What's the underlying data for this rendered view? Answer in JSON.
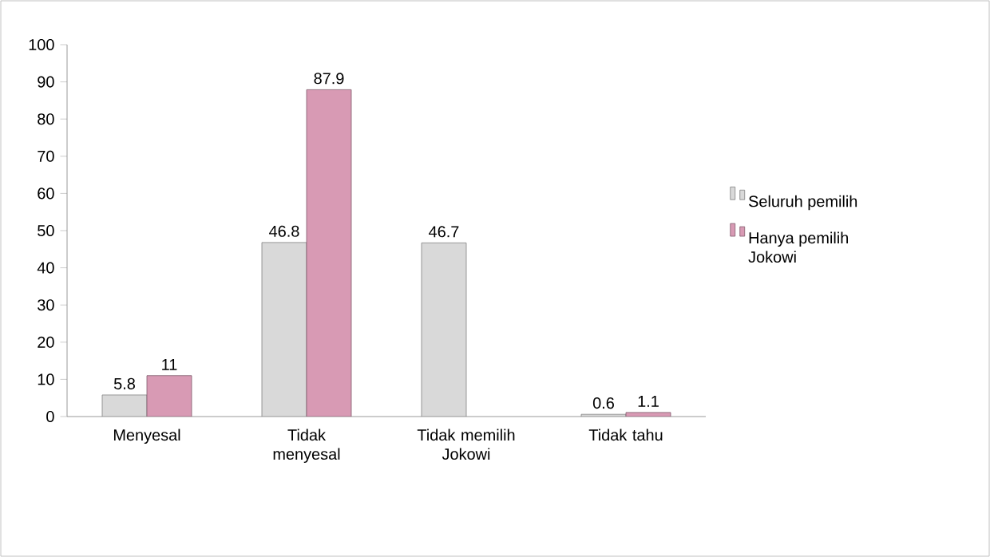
{
  "chart_data": {
    "type": "bar",
    "categories": [
      "Menyesal",
      "Tidak menyesal",
      "Tidak memilih Jokowi",
      "Tidak tahu"
    ],
    "series": [
      {
        "name": "Seluruh pemilih",
        "color": "#d9d9d9",
        "values": [
          5.8,
          46.8,
          46.7,
          0.6
        ]
      },
      {
        "name": "Hanya pemilih Jokowi",
        "color": "#d89ab4",
        "values": [
          11,
          87.9,
          null,
          1.1
        ]
      }
    ],
    "ylim": [
      0,
      100
    ],
    "yticks": [
      0,
      10,
      20,
      30,
      40,
      50,
      60,
      70,
      80,
      90,
      100
    ],
    "data_labels": true,
    "legend": "right",
    "grid": false
  }
}
